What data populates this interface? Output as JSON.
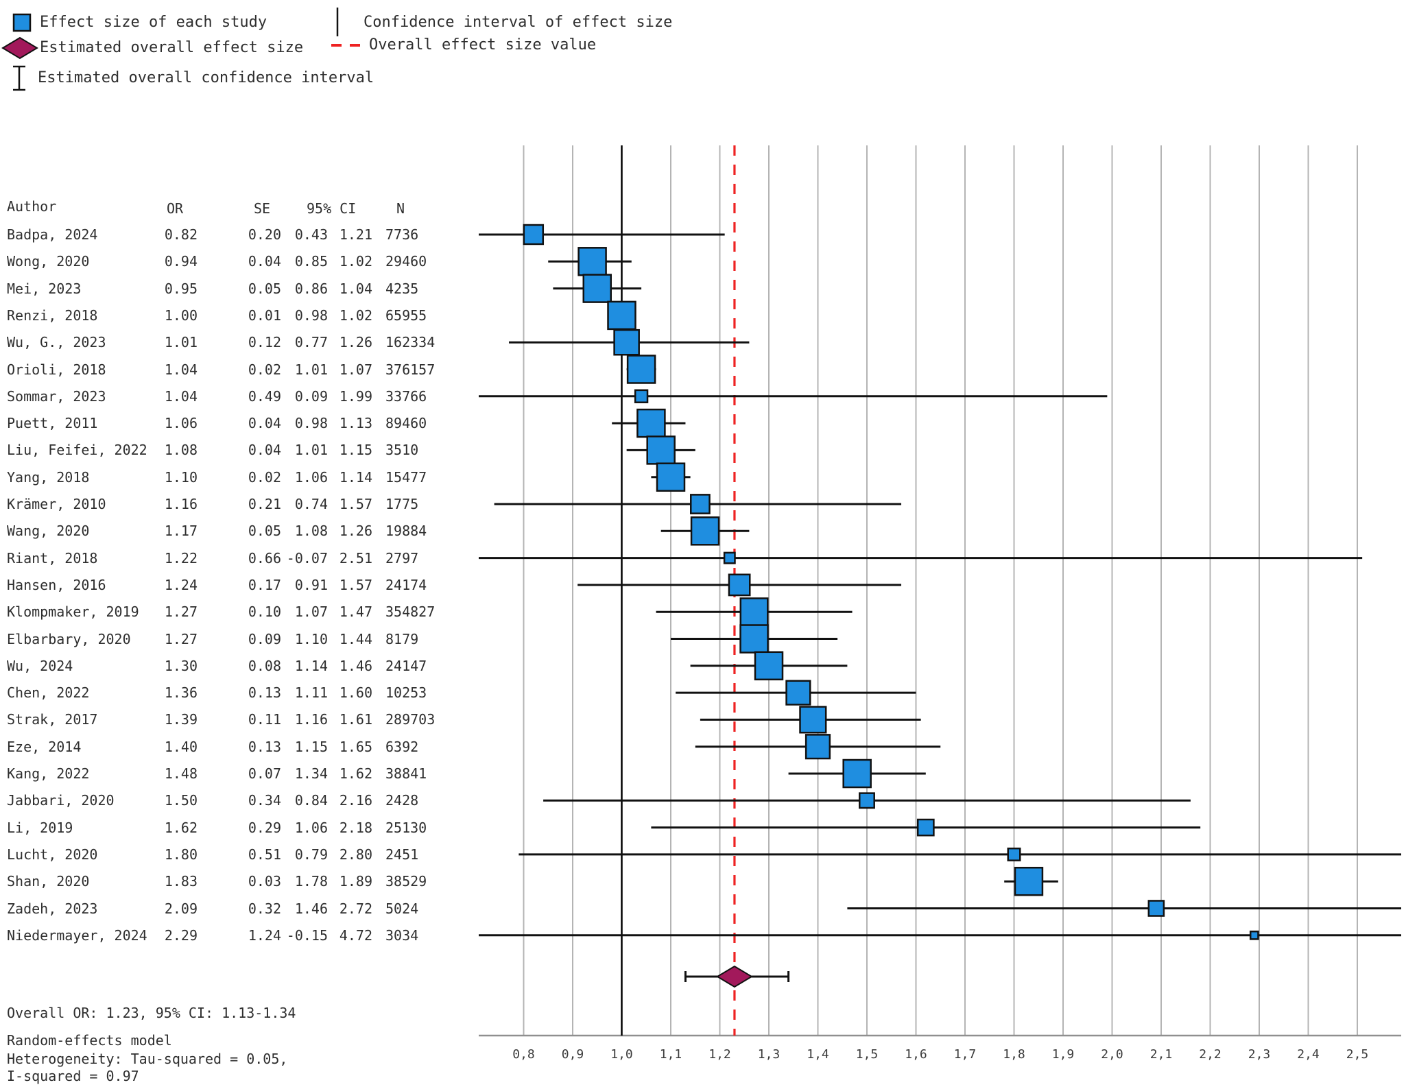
{
  "legend": {
    "items": [
      {
        "icon": "effect-size-square-icon",
        "label": "Effect size of each study"
      },
      {
        "icon": "ci-line-icon",
        "label": "Confidence interval of effect size"
      },
      {
        "icon": "overall-diamond-icon",
        "label": "Estimated overall effect size"
      },
      {
        "icon": "overall-dashed-line-icon",
        "label": "Overall effect size value"
      },
      {
        "icon": "overall-ci-ibeam-icon",
        "label": "Estimated overall confidence interval"
      }
    ]
  },
  "table": {
    "headers": {
      "author": "Author",
      "or": "OR",
      "se": "SE",
      "ci": "95% CI",
      "n": "N"
    }
  },
  "chart_data": {
    "type": "forest",
    "x_axis": {
      "range": [
        0.71,
        2.59
      ],
      "ticks": [
        {
          "v": 0.8,
          "label": "0,8"
        },
        {
          "v": 0.9,
          "label": "0,9"
        },
        {
          "v": 1.0,
          "label": "1,0"
        },
        {
          "v": 1.1,
          "label": "1,1"
        },
        {
          "v": 1.2,
          "label": "1,2"
        },
        {
          "v": 1.3,
          "label": "1,3"
        },
        {
          "v": 1.4,
          "label": "1,4"
        },
        {
          "v": 1.5,
          "label": "1,5"
        },
        {
          "v": 1.6,
          "label": "1,6"
        },
        {
          "v": 1.7,
          "label": "1,7"
        },
        {
          "v": 1.8,
          "label": "1,8"
        },
        {
          "v": 1.9,
          "label": "1,9"
        },
        {
          "v": 2.0,
          "label": "2,0"
        },
        {
          "v": 2.1,
          "label": "2,1"
        },
        {
          "v": 2.2,
          "label": "2,2"
        },
        {
          "v": 2.3,
          "label": "2,3"
        },
        {
          "v": 2.4,
          "label": "2,4"
        },
        {
          "v": 2.5,
          "label": "2,5"
        }
      ]
    },
    "null_line_value": 1.0,
    "studies": [
      {
        "author": "Badpa, 2024",
        "or": 0.82,
        "se": 0.2,
        "ci_low": 0.43,
        "ci_high": 1.21,
        "n": "7736"
      },
      {
        "author": "Wong, 2020",
        "or": 0.94,
        "se": 0.04,
        "ci_low": 0.85,
        "ci_high": 1.02,
        "n": "29460"
      },
      {
        "author": "Mei, 2023",
        "or": 0.95,
        "se": 0.05,
        "ci_low": 0.86,
        "ci_high": 1.04,
        "n": "4235"
      },
      {
        "author": "Renzi, 2018",
        "or": 1.0,
        "se": 0.01,
        "ci_low": 0.98,
        "ci_high": 1.02,
        "n": "65955"
      },
      {
        "author": "Wu, G., 2023",
        "or": 1.01,
        "se": 0.12,
        "ci_low": 0.77,
        "ci_high": 1.26,
        "n": "162334"
      },
      {
        "author": "Orioli, 2018",
        "or": 1.04,
        "se": 0.02,
        "ci_low": 1.01,
        "ci_high": 1.07,
        "n": "376157"
      },
      {
        "author": "Sommar, 2023",
        "or": 1.04,
        "se": 0.49,
        "ci_low": 0.09,
        "ci_high": 1.99,
        "n": "33766"
      },
      {
        "author": "Puett, 2011",
        "or": 1.06,
        "se": 0.04,
        "ci_low": 0.98,
        "ci_high": 1.13,
        "n": "89460"
      },
      {
        "author": "Liu, Feifei, 2022",
        "or": 1.08,
        "se": 0.04,
        "ci_low": 1.01,
        "ci_high": 1.15,
        "n": "3510"
      },
      {
        "author": "Yang, 2018",
        "or": 1.1,
        "se": 0.02,
        "ci_low": 1.06,
        "ci_high": 1.14,
        "n": "15477"
      },
      {
        "author": "Krämer, 2010",
        "or": 1.16,
        "se": 0.21,
        "ci_low": 0.74,
        "ci_high": 1.57,
        "n": "1775"
      },
      {
        "author": "Wang, 2020",
        "or": 1.17,
        "se": 0.05,
        "ci_low": 1.08,
        "ci_high": 1.26,
        "n": "19884"
      },
      {
        "author": "Riant, 2018",
        "or": 1.22,
        "se": 0.66,
        "ci_low": -0.07,
        "ci_high": 2.51,
        "n": "2797"
      },
      {
        "author": "Hansen, 2016",
        "or": 1.24,
        "se": 0.17,
        "ci_low": 0.91,
        "ci_high": 1.57,
        "n": "24174"
      },
      {
        "author": "Klompmaker, 2019",
        "or": 1.27,
        "se": 0.1,
        "ci_low": 1.07,
        "ci_high": 1.47,
        "n": "354827"
      },
      {
        "author": "Elbarbary, 2020",
        "or": 1.27,
        "se": 0.09,
        "ci_low": 1.1,
        "ci_high": 1.44,
        "n": "8179"
      },
      {
        "author": "Wu, 2024",
        "or": 1.3,
        "se": 0.08,
        "ci_low": 1.14,
        "ci_high": 1.46,
        "n": "24147"
      },
      {
        "author": "Chen, 2022",
        "or": 1.36,
        "se": 0.13,
        "ci_low": 1.11,
        "ci_high": 1.6,
        "n": "10253"
      },
      {
        "author": "Strak, 2017",
        "or": 1.39,
        "se": 0.11,
        "ci_low": 1.16,
        "ci_high": 1.61,
        "n": "289703"
      },
      {
        "author": "Eze, 2014",
        "or": 1.4,
        "se": 0.13,
        "ci_low": 1.15,
        "ci_high": 1.65,
        "n": "6392"
      },
      {
        "author": "Kang, 2022",
        "or": 1.48,
        "se": 0.07,
        "ci_low": 1.34,
        "ci_high": 1.62,
        "n": "38841"
      },
      {
        "author": "Jabbari, 2020",
        "or": 1.5,
        "se": 0.34,
        "ci_low": 0.84,
        "ci_high": 2.16,
        "n": "2428"
      },
      {
        "author": "Li, 2019",
        "or": 1.62,
        "se": 0.29,
        "ci_low": 1.06,
        "ci_high": 2.18,
        "n": "25130"
      },
      {
        "author": "Lucht, 2020",
        "or": 1.8,
        "se": 0.51,
        "ci_low": 0.79,
        "ci_high": 2.8,
        "n": "2451"
      },
      {
        "author": "Shan, 2020",
        "or": 1.83,
        "se": 0.03,
        "ci_low": 1.78,
        "ci_high": 1.89,
        "n": "38529"
      },
      {
        "author": "Zadeh, 2023",
        "or": 2.09,
        "se": 0.32,
        "ci_low": 1.46,
        "ci_high": 2.72,
        "n": "5024"
      },
      {
        "author": "Niedermayer, 2024",
        "or": 2.29,
        "se": 1.24,
        "ci_low": -0.15,
        "ci_high": 4.72,
        "n": "3034"
      }
    ],
    "overall": {
      "or": 1.23,
      "ci_low": 1.13,
      "ci_high": 1.34,
      "label": "Overall OR: 1.23, 95% CI: 1.13-1.34"
    },
    "footer": [
      "Random-effects model",
      "Heterogeneity: Tau-squared = 0.05,",
      "I-squared = 0.97"
    ],
    "colors": {
      "marker": "#1F8EE0",
      "diamond": "#A2195B",
      "overall_line": "#EE2222",
      "grid": "#b4b4b4",
      "axis": "#8f8f8f",
      "ci_line": "#111111",
      "text": "#3a3a3a"
    }
  }
}
